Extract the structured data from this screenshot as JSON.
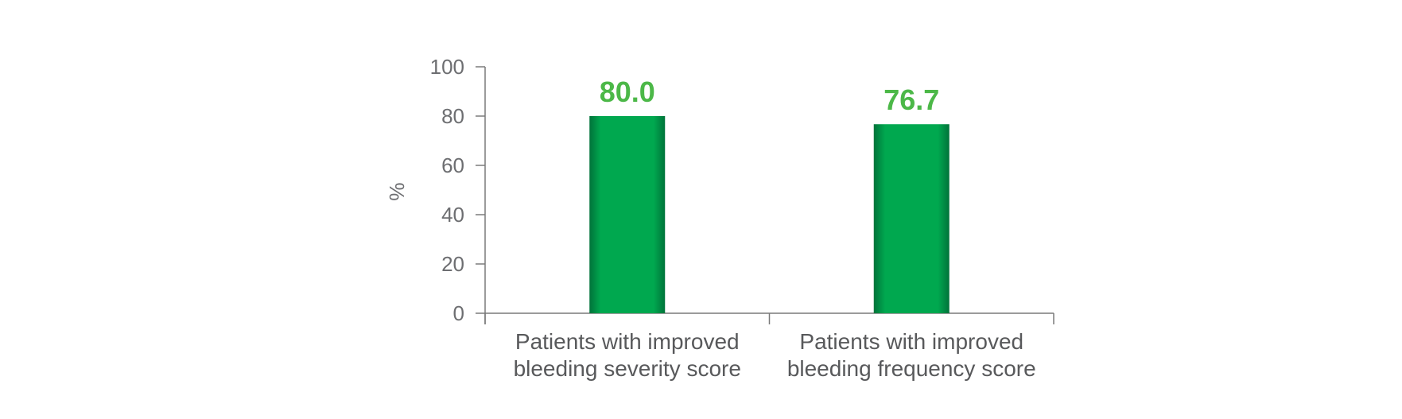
{
  "chart_data": {
    "type": "bar",
    "categories": [
      [
        "Patients with improved",
        "bleeding severity score"
      ],
      [
        "Patients with improved",
        "bleeding frequency score"
      ]
    ],
    "values": [
      80.0,
      76.7
    ],
    "data_labels": [
      "80.0",
      "76.7"
    ],
    "ylabel": "%",
    "ylim": [
      0,
      100
    ],
    "yticks": [
      0,
      20,
      40,
      60,
      80,
      100
    ],
    "grid": false,
    "legend": "none"
  },
  "colors": {
    "bar": "#00a84f",
    "bar_shadow": "#00733a",
    "data_label": "#4cb848",
    "axis": "#7a7a7a"
  }
}
